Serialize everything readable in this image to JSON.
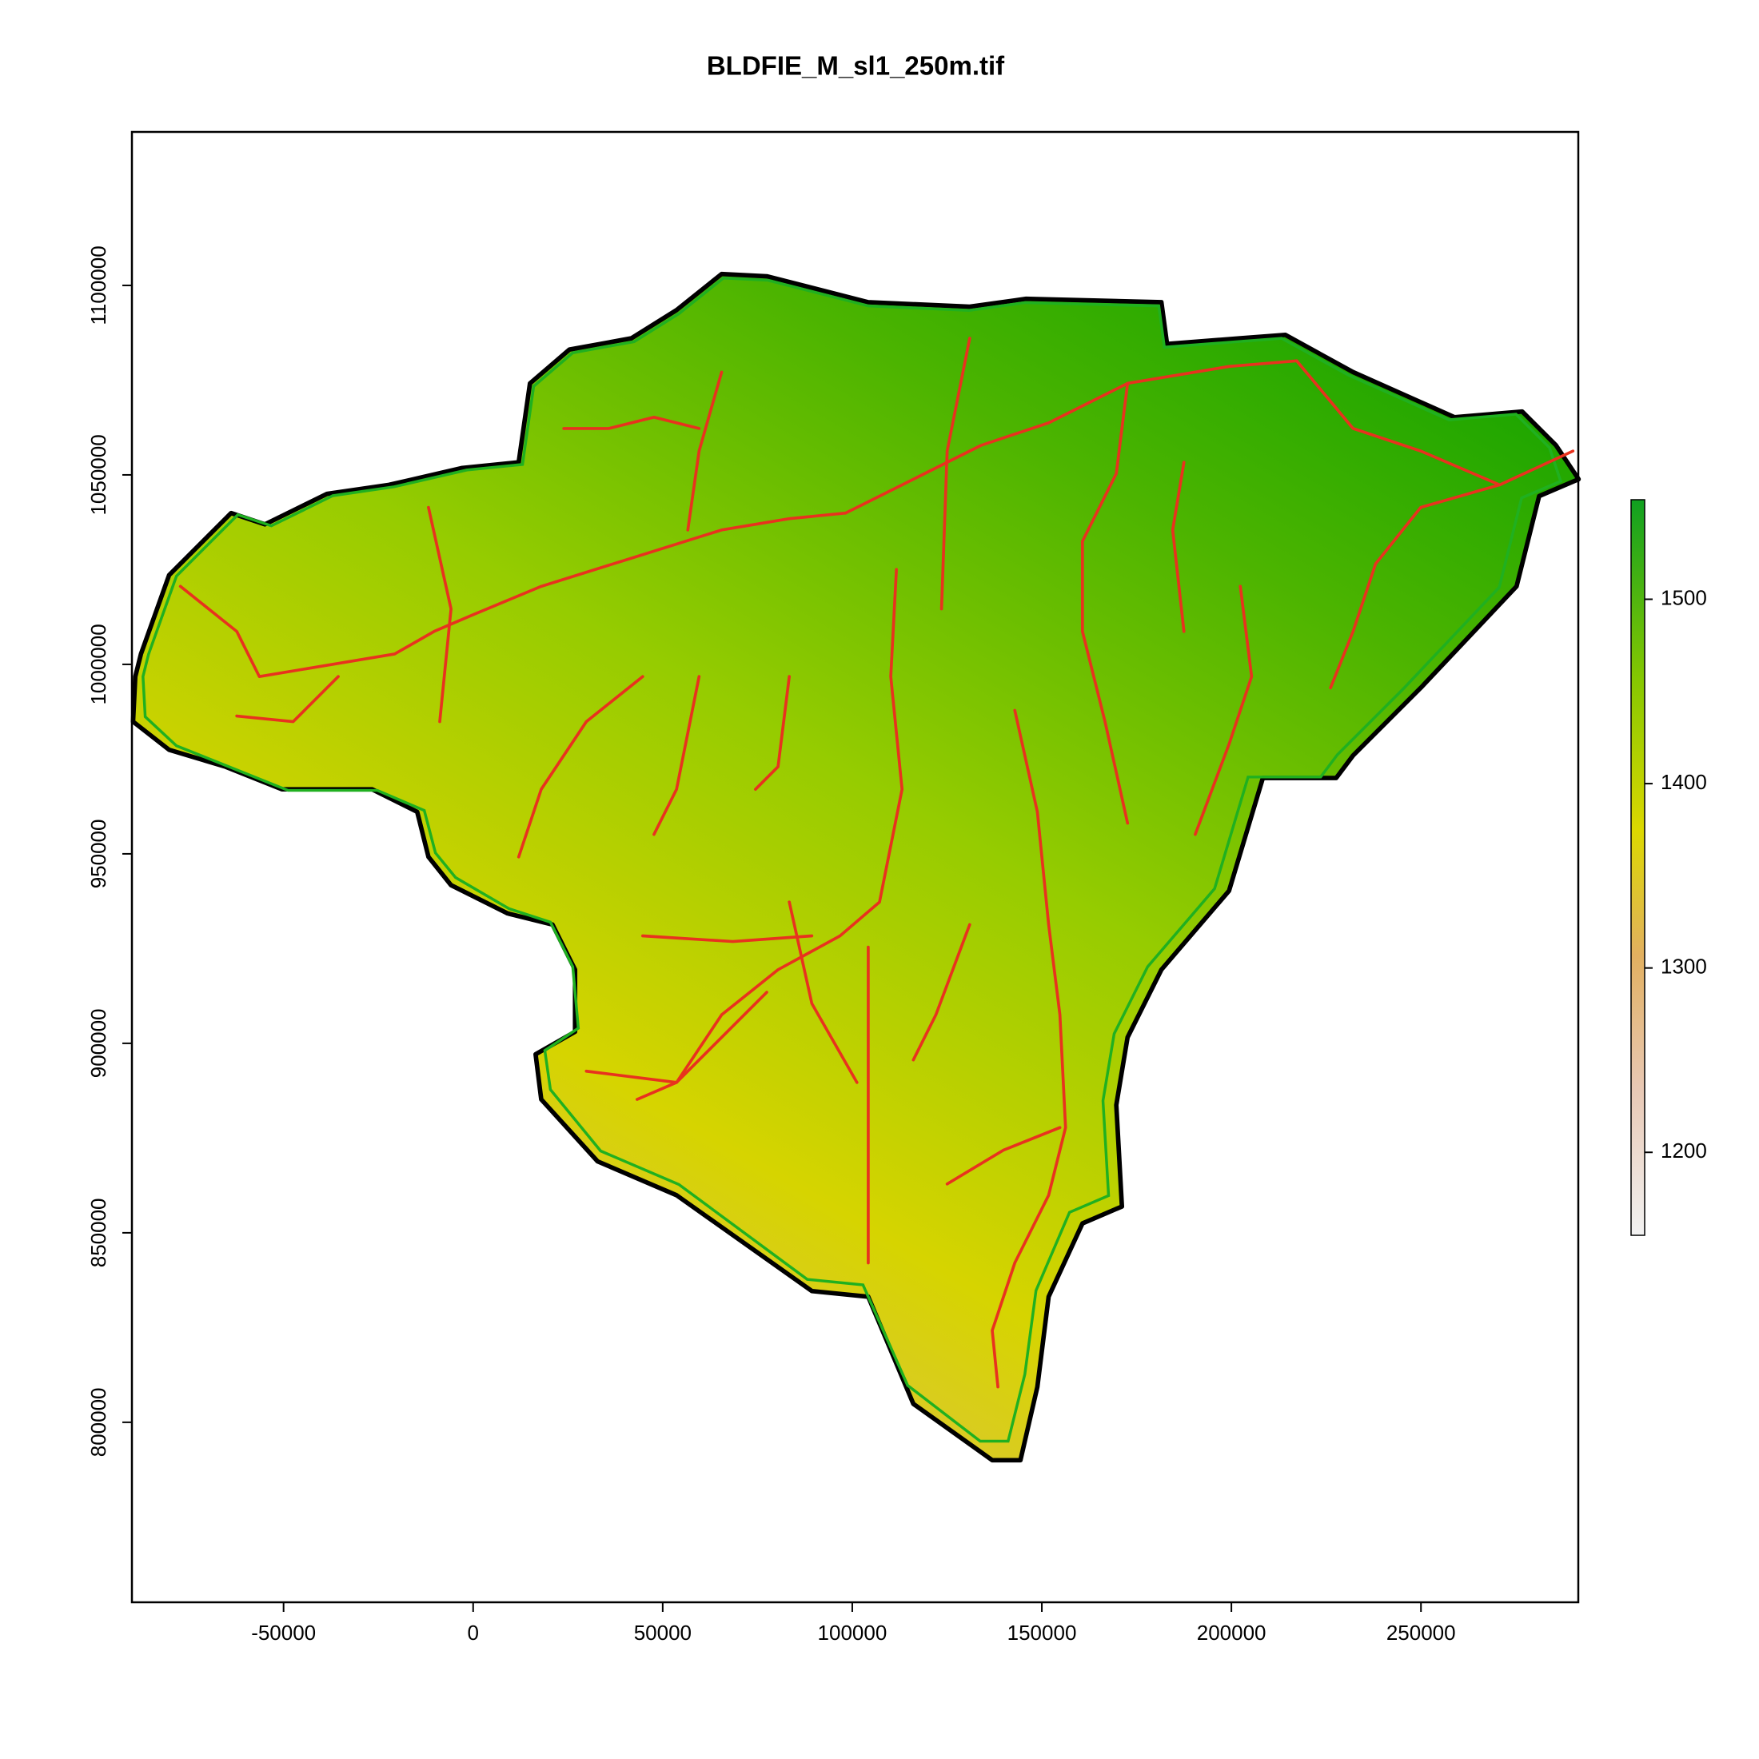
{
  "chart_data": {
    "type": "raster-map",
    "title": "BLDFIE_M_sl1_250m.tif",
    "xlim": [
      -90000,
      291500
    ],
    "ylim": [
      752500,
      1140500
    ],
    "xticks": [
      -50000,
      0,
      50000,
      100000,
      150000,
      200000,
      250000
    ],
    "yticks": [
      800000,
      850000,
      900000,
      950000,
      1000000,
      1050000,
      1100000
    ],
    "legend": {
      "lim": [
        1155,
        1554
      ],
      "ticks": [
        1200,
        1300,
        1400,
        1500
      ]
    }
  }
}
